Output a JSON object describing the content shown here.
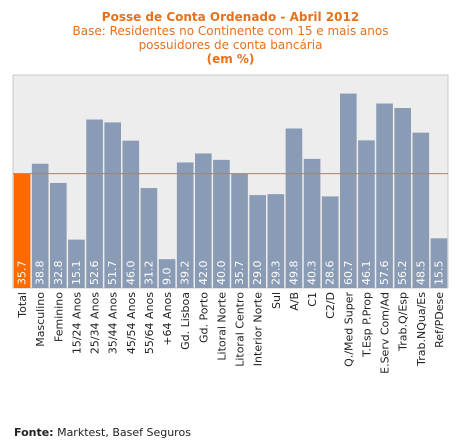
{
  "title": "Posse de Conta Ordenado - Abril 2012",
  "subtitle_line1": "Base: Residentes no Continente com 15 e mais anos",
  "subtitle_line2": "possuidores de conta bancária",
  "unit_line": "(em %)",
  "source_label": "Fonte:",
  "source_text": "Marktest, Basef Seguros",
  "colors": {
    "bar": "#8a9bb5",
    "highlight_bar": "#ff6a00",
    "reference_line": "#e8701a",
    "plot_bg": "#ededed",
    "title": "#e8701a",
    "value_text": "#ffffff"
  },
  "chart_data": {
    "type": "bar",
    "categories": [
      "Total",
      "Masculino",
      "Feminino",
      "15/24 Anos",
      "25/34 Anos",
      "35/44 Anos",
      "45/54 Anos",
      "55/64 Anos",
      "+64 Anos",
      "Gd. Lisboa",
      "Gd. Porto",
      "Litoral Norte",
      "Litoral Centro",
      "Interior Norte",
      "Sul",
      "A/B",
      "C1",
      "C2/D",
      "Q./Med Super",
      "T.Esp P.Prop",
      "E.Serv Com/Ad",
      "Trab.Q/Esp",
      "Trab.NQua/Es",
      "Ref/PDese"
    ],
    "values": [
      35.7,
      38.8,
      32.8,
      15.1,
      52.6,
      51.7,
      46.0,
      31.2,
      9.0,
      39.2,
      42.0,
      40.0,
      35.7,
      29.0,
      29.3,
      49.8,
      40.3,
      28.6,
      60.7,
      46.1,
      57.6,
      56.2,
      48.5,
      15.5
    ],
    "value_labels": [
      "35.7",
      "38.8",
      "32.8",
      "15.1",
      "52.6",
      "51.7",
      "46.0",
      "31.2",
      "9.0",
      "39.2",
      "42.0",
      "40.0",
      "35.7",
      "29.0",
      "29.3",
      "49.8",
      "40.3",
      "28.6",
      "60.7",
      "46.1",
      "57.6",
      "56.2",
      "48.5",
      "15.5"
    ],
    "highlight_index": 0,
    "reference_value": 35.7,
    "ylim": [
      0,
      66.5
    ],
    "grid": false,
    "xlabel": "",
    "ylabel": ""
  }
}
